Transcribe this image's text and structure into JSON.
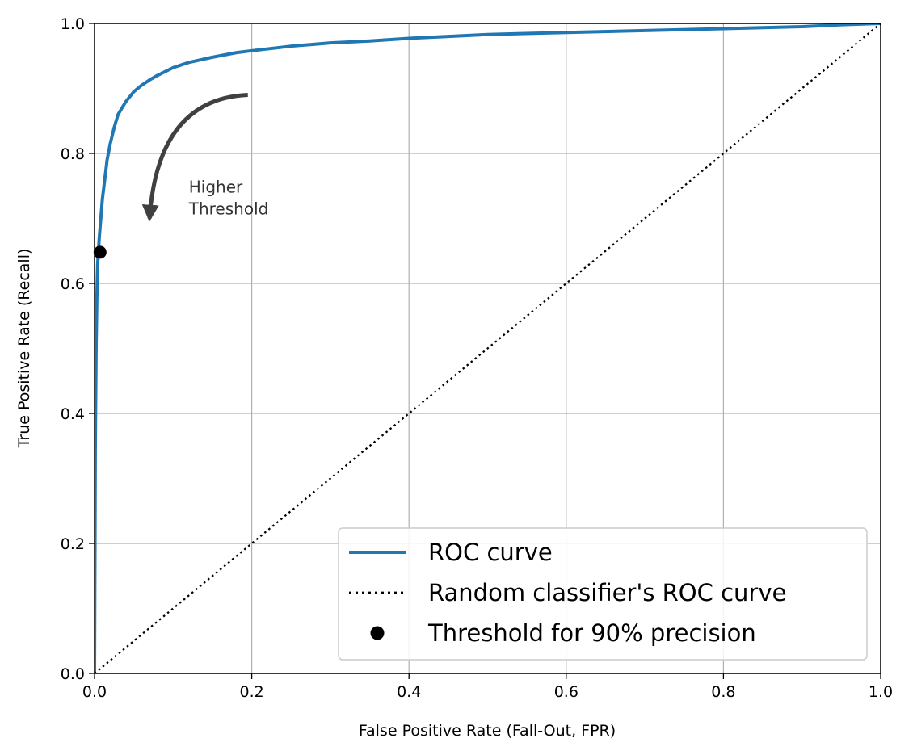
{
  "chart_data": {
    "type": "line",
    "xlabel": "False Positive Rate (Fall-Out, FPR)",
    "ylabel": "True Positive Rate (Recall)",
    "xlim": [
      0.0,
      1.0
    ],
    "ylim": [
      0.0,
      1.0
    ],
    "grid": true,
    "legend_position": "bottom-right",
    "xticks": [
      "0.0",
      "0.2",
      "0.4",
      "0.6",
      "0.8",
      "1.0"
    ],
    "yticks": [
      "0.0",
      "0.2",
      "0.4",
      "0.6",
      "0.8",
      "1.0"
    ],
    "series": [
      {
        "name": "ROC curve",
        "style": "solid",
        "color": "#1f77b4",
        "x": [
          0.0,
          0.001,
          0.002,
          0.003,
          0.004,
          0.006,
          0.008,
          0.01,
          0.013,
          0.016,
          0.02,
          0.025,
          0.03,
          0.035,
          0.04,
          0.05,
          0.06,
          0.07,
          0.08,
          0.1,
          0.12,
          0.15,
          0.18,
          0.2,
          0.25,
          0.3,
          0.35,
          0.4,
          0.45,
          0.5,
          0.6,
          0.7,
          0.8,
          0.9,
          0.95,
          1.0
        ],
        "y": [
          0.0,
          0.35,
          0.5,
          0.58,
          0.63,
          0.67,
          0.7,
          0.73,
          0.76,
          0.79,
          0.815,
          0.84,
          0.86,
          0.87,
          0.88,
          0.895,
          0.905,
          0.913,
          0.92,
          0.932,
          0.94,
          0.948,
          0.955,
          0.958,
          0.965,
          0.97,
          0.973,
          0.977,
          0.98,
          0.983,
          0.986,
          0.989,
          0.992,
          0.995,
          0.998,
          1.0
        ]
      },
      {
        "name": "Random classifier's ROC curve",
        "style": "dotted",
        "color": "#000000",
        "x": [
          0.0,
          1.0
        ],
        "y": [
          0.0,
          1.0
        ]
      }
    ],
    "points": [
      {
        "name": "Threshold for 90% precision",
        "x": 0.007,
        "y": 0.648,
        "color": "#000000"
      }
    ],
    "annotations": [
      {
        "text_lines": [
          "Higher",
          "Threshold"
        ],
        "x": 0.12,
        "y": 0.74,
        "color": "#404040",
        "arrow_from": [
          0.195,
          0.89
        ],
        "arrow_to": [
          0.07,
          0.7
        ]
      }
    ]
  }
}
